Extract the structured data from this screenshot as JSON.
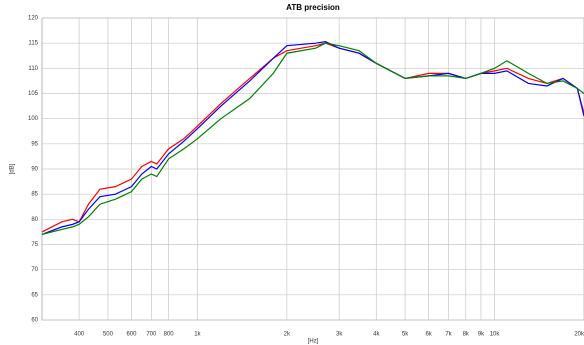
{
  "chart_data": {
    "type": "line",
    "title": "ATB precision",
    "xlabel": "[Hz]",
    "ylabel": "[dB]",
    "xscale": "log",
    "grid": true,
    "x": [
      300,
      350,
      380,
      400,
      430,
      470,
      530,
      600,
      650,
      700,
      730,
      800,
      900,
      1000,
      1200,
      1500,
      1800,
      2000,
      2500,
      2700,
      3000,
      3500,
      4000,
      5000,
      6000,
      7000,
      8000,
      9000,
      10000,
      11000,
      13000,
      15000,
      17000,
      19000,
      20000
    ],
    "series": [
      {
        "color": "#ff0000",
        "values": [
          77.5,
          79.5,
          80,
          79.5,
          83,
          86,
          86.5,
          88,
          90.5,
          91.5,
          91,
          94,
          96,
          98.5,
          103,
          108,
          112,
          113.5,
          114.5,
          115,
          114,
          113,
          111,
          108,
          109,
          109,
          108,
          109,
          109.5,
          110,
          108,
          107,
          108,
          106,
          101
        ]
      },
      {
        "color": "#0000ff",
        "values": [
          77,
          78.5,
          79,
          79.5,
          82,
          84.5,
          85,
          86.5,
          89,
          90.5,
          90,
          93,
          95.5,
          98,
          102.5,
          107.5,
          112,
          114.5,
          115,
          115.3,
          114,
          113,
          111,
          108,
          108.5,
          109,
          108,
          109,
          109,
          109.5,
          107,
          106.5,
          108,
          106,
          100.5
        ]
      },
      {
        "color": "#008000",
        "values": [
          77,
          78,
          78.5,
          79,
          80.5,
          83,
          84,
          85.5,
          88,
          89,
          88.5,
          92,
          94,
          96,
          100,
          104,
          109,
          113,
          114,
          115,
          114.5,
          113.5,
          111,
          108,
          108.5,
          108.5,
          108,
          109,
          110,
          111.5,
          109,
          107,
          107.5,
          106,
          105
        ]
      }
    ],
    "xlim": [
      300,
      20000
    ],
    "xticks": [
      400,
      500,
      600,
      700,
      800,
      {
        "value": 1000,
        "label": "1k"
      },
      {
        "value": 2000,
        "label": "2k"
      },
      {
        "value": 3000,
        "label": "3k"
      },
      {
        "value": 4000,
        "label": "4k"
      },
      {
        "value": 5000,
        "label": "5k"
      },
      {
        "value": 6000,
        "label": "6k"
      },
      {
        "value": 7000,
        "label": "7k"
      },
      {
        "value": 8000,
        "label": "8k"
      },
      {
        "value": 9000,
        "label": "9k"
      },
      {
        "value": 10000,
        "label": "10k"
      },
      {
        "value": 20000,
        "label": "20k"
      }
    ],
    "ylim": [
      60,
      120
    ],
    "yticks": [
      60,
      65,
      70,
      75,
      80,
      85,
      90,
      95,
      100,
      105,
      110,
      115,
      120
    ]
  }
}
